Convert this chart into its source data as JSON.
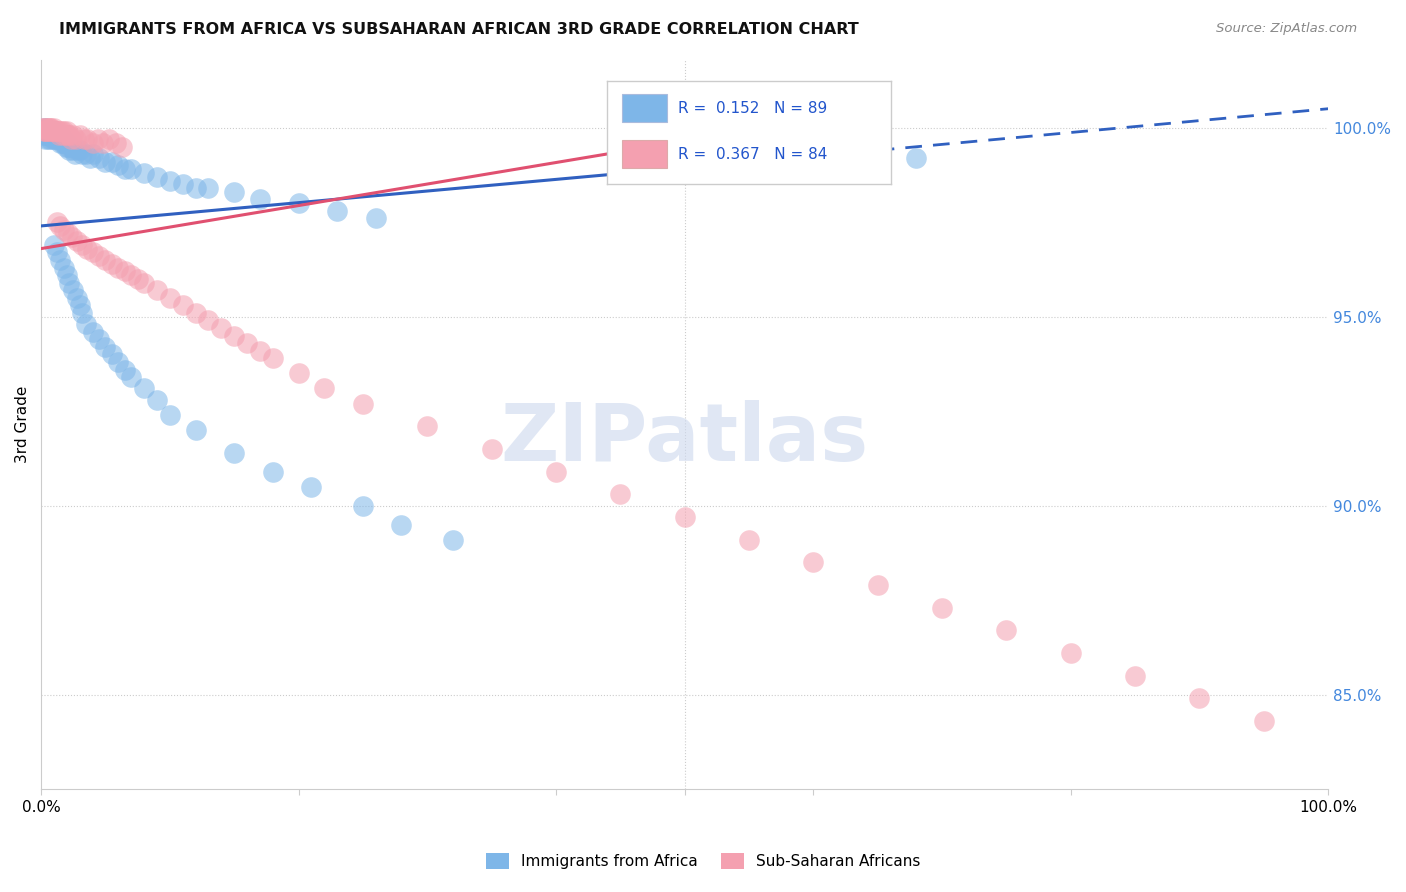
{
  "title": "IMMIGRANTS FROM AFRICA VS SUBSAHARAN AFRICAN 3RD GRADE CORRELATION CHART",
  "source": "Source: ZipAtlas.com",
  "ylabel": "3rd Grade",
  "xlim": [
    0.0,
    1.0
  ],
  "ylim": [
    0.825,
    1.018
  ],
  "ytick_values": [
    0.85,
    0.9,
    0.95,
    1.0
  ],
  "ytick_labels": [
    "85.0%",
    "90.0%",
    "95.0%",
    "100.0%"
  ],
  "R1": 0.152,
  "N1": 89,
  "R2": 0.367,
  "N2": 84,
  "color1": "#7eb6e8",
  "color2": "#f4a0b0",
  "trend1_color": "#3060c0",
  "trend2_color": "#e05070",
  "background": "#ffffff",
  "grid_color": "#cccccc",
  "watermark": "ZIPatlas",
  "scatter1_x": [
    0.001,
    0.002,
    0.002,
    0.003,
    0.003,
    0.004,
    0.004,
    0.005,
    0.005,
    0.006,
    0.006,
    0.007,
    0.007,
    0.008,
    0.008,
    0.009,
    0.009,
    0.01,
    0.01,
    0.011,
    0.011,
    0.012,
    0.012,
    0.013,
    0.014,
    0.015,
    0.015,
    0.016,
    0.017,
    0.018,
    0.019,
    0.02,
    0.021,
    0.022,
    0.023,
    0.025,
    0.026,
    0.028,
    0.03,
    0.032,
    0.035,
    0.038,
    0.04,
    0.045,
    0.05,
    0.055,
    0.06,
    0.065,
    0.07,
    0.08,
    0.09,
    0.1,
    0.11,
    0.12,
    0.13,
    0.15,
    0.17,
    0.2,
    0.23,
    0.26,
    0.01,
    0.012,
    0.015,
    0.018,
    0.02,
    0.022,
    0.025,
    0.028,
    0.03,
    0.032,
    0.035,
    0.04,
    0.045,
    0.05,
    0.055,
    0.06,
    0.065,
    0.07,
    0.08,
    0.09,
    0.1,
    0.12,
    0.15,
    0.18,
    0.21,
    0.25,
    0.28,
    0.32,
    0.68
  ],
  "scatter1_y": [
    0.999,
    0.998,
    1.0,
    0.997,
    0.999,
    0.998,
    1.0,
    0.997,
    0.999,
    0.998,
    0.999,
    0.997,
    0.998,
    0.998,
    0.999,
    0.997,
    0.998,
    0.998,
    0.997,
    0.998,
    0.999,
    0.997,
    0.998,
    0.997,
    0.997,
    0.996,
    0.998,
    0.996,
    0.997,
    0.996,
    0.995,
    0.996,
    0.995,
    0.994,
    0.995,
    0.994,
    0.993,
    0.994,
    0.994,
    0.993,
    0.993,
    0.992,
    0.993,
    0.992,
    0.991,
    0.991,
    0.99,
    0.989,
    0.989,
    0.988,
    0.987,
    0.986,
    0.985,
    0.984,
    0.984,
    0.983,
    0.981,
    0.98,
    0.978,
    0.976,
    0.969,
    0.967,
    0.965,
    0.963,
    0.961,
    0.959,
    0.957,
    0.955,
    0.953,
    0.951,
    0.948,
    0.946,
    0.944,
    0.942,
    0.94,
    0.938,
    0.936,
    0.934,
    0.931,
    0.928,
    0.924,
    0.92,
    0.914,
    0.909,
    0.905,
    0.9,
    0.895,
    0.891,
    0.992
  ],
  "scatter2_x": [
    0.001,
    0.002,
    0.002,
    0.003,
    0.003,
    0.004,
    0.005,
    0.005,
    0.006,
    0.007,
    0.007,
    0.008,
    0.008,
    0.009,
    0.01,
    0.01,
    0.011,
    0.012,
    0.013,
    0.014,
    0.015,
    0.016,
    0.017,
    0.018,
    0.019,
    0.02,
    0.021,
    0.022,
    0.023,
    0.025,
    0.027,
    0.03,
    0.033,
    0.036,
    0.04,
    0.044,
    0.048,
    0.053,
    0.058,
    0.063,
    0.012,
    0.015,
    0.018,
    0.021,
    0.024,
    0.028,
    0.032,
    0.036,
    0.04,
    0.045,
    0.05,
    0.055,
    0.06,
    0.065,
    0.07,
    0.075,
    0.08,
    0.09,
    0.1,
    0.11,
    0.12,
    0.13,
    0.14,
    0.15,
    0.16,
    0.17,
    0.18,
    0.2,
    0.22,
    0.25,
    0.3,
    0.35,
    0.4,
    0.45,
    0.5,
    0.55,
    0.6,
    0.65,
    0.7,
    0.75,
    0.8,
    0.85,
    0.9,
    0.95
  ],
  "scatter2_y": [
    1.0,
    0.999,
    1.0,
    0.999,
    1.0,
    0.999,
    1.0,
    0.999,
    1.0,
    0.999,
    1.0,
    0.999,
    1.0,
    0.999,
    1.0,
    0.999,
    0.999,
    0.999,
    0.999,
    0.998,
    0.999,
    0.999,
    0.998,
    0.999,
    0.998,
    0.999,
    0.998,
    0.998,
    0.997,
    0.998,
    0.997,
    0.998,
    0.997,
    0.997,
    0.996,
    0.997,
    0.996,
    0.997,
    0.996,
    0.995,
    0.975,
    0.974,
    0.973,
    0.972,
    0.971,
    0.97,
    0.969,
    0.968,
    0.967,
    0.966,
    0.965,
    0.964,
    0.963,
    0.962,
    0.961,
    0.96,
    0.959,
    0.957,
    0.955,
    0.953,
    0.951,
    0.949,
    0.947,
    0.945,
    0.943,
    0.941,
    0.939,
    0.935,
    0.931,
    0.927,
    0.921,
    0.915,
    0.909,
    0.903,
    0.897,
    0.891,
    0.885,
    0.879,
    0.873,
    0.867,
    0.861,
    0.855,
    0.849,
    0.843
  ],
  "trend1_x0": 0.0,
  "trend1_y0": 0.974,
  "trend1_x1": 1.0,
  "trend1_y1": 1.005,
  "trend2_x0": 0.0,
  "trend2_y0": 0.968,
  "trend2_x1": 0.65,
  "trend2_y1": 1.005,
  "trend1_dash_x0": 0.65,
  "trend1_dash_y0": 0.994,
  "trend1_dash_x1": 1.0,
  "trend1_dash_y1": 1.005
}
